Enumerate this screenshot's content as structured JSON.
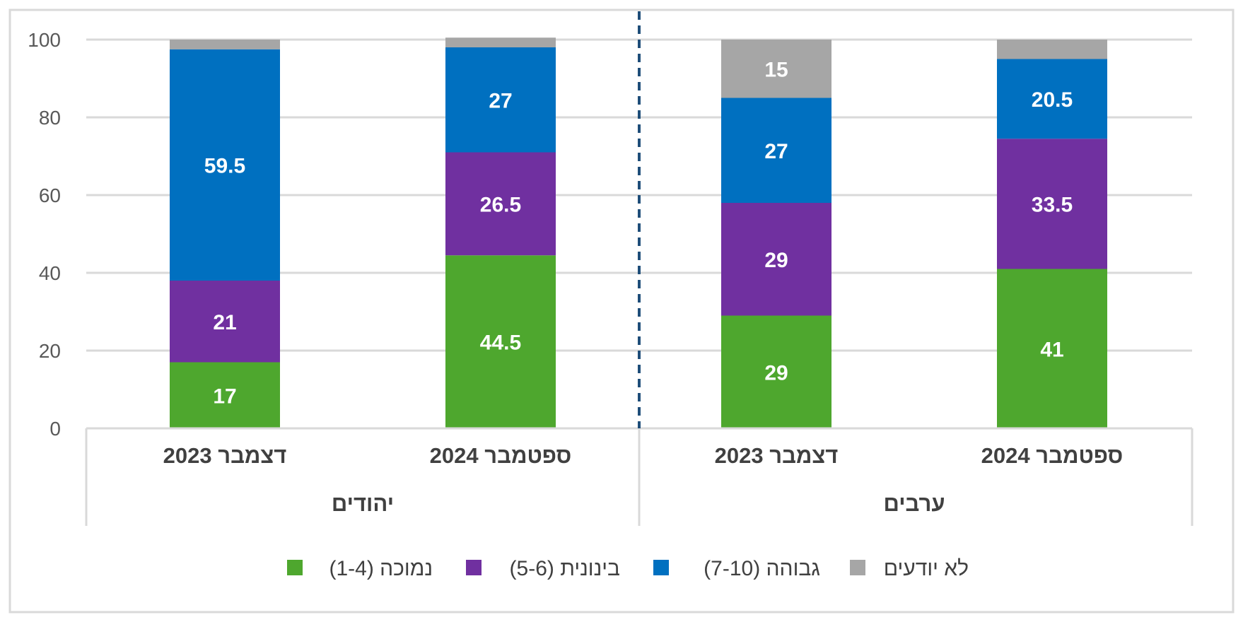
{
  "chart_data": {
    "type": "bar",
    "stacked": true,
    "ylim": [
      0,
      100
    ],
    "yticks": [
      "0",
      "20",
      "40",
      "60",
      "80",
      "100"
    ],
    "grid": true,
    "legend_position": "bottom",
    "group_separator_style": "dashed",
    "groups": [
      {
        "label": "יהודים",
        "categories": [
          "דצמבר 2023",
          "ספטמבר 2024"
        ]
      },
      {
        "label": "ערבים",
        "categories": [
          "דצמבר 2023",
          "ספטמבר 2024"
        ]
      }
    ],
    "series": [
      {
        "name": "נמוכה (1-4)",
        "color": "#4ea72e",
        "values": [
          17,
          44.5,
          29,
          41
        ],
        "labels": [
          "17",
          "44.5",
          "29",
          "41"
        ]
      },
      {
        "name": "בינונית (5-6)",
        "color": "#7030a0",
        "values": [
          21,
          26.5,
          29,
          33.5
        ],
        "labels": [
          "21",
          "26.5",
          "29",
          "33.5"
        ]
      },
      {
        "name": "גבוהה (7-10)",
        "color": "#0070c0",
        "values": [
          59.5,
          27,
          27,
          20.5
        ],
        "labels": [
          "59.5",
          "27",
          "27",
          "20.5"
        ]
      },
      {
        "name": "לא יודעים",
        "color": "#a6a6a6",
        "values": [
          2.5,
          2.5,
          15,
          5
        ],
        "labels": [
          "",
          "",
          "15",
          ""
        ]
      }
    ]
  }
}
